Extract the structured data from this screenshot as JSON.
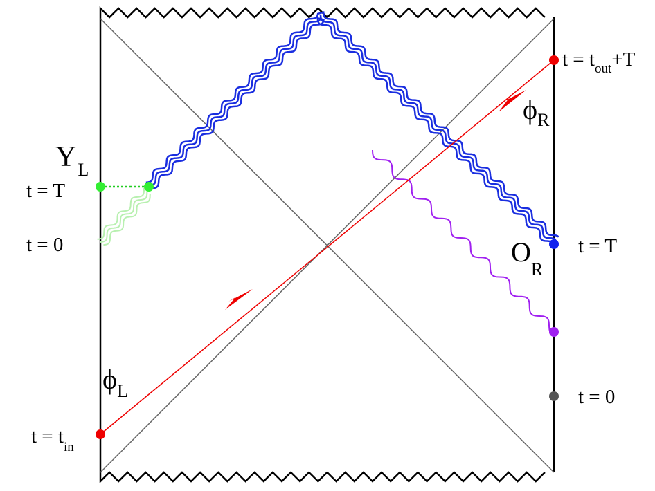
{
  "labels": {
    "y_left": {
      "main": "Y",
      "sub": "L"
    },
    "t_T_left": "t = T",
    "t_0_left": "t = 0",
    "phi_left": {
      "main": "ϕ",
      "sub": "L"
    },
    "t_in": {
      "main": "t = t",
      "sub": "in"
    },
    "t_out": {
      "main": "t = t",
      "sub": "out",
      "tail": "+T"
    },
    "phi_right": {
      "main": "ϕ",
      "sub": "R"
    },
    "o_right": {
      "main": "O",
      "sub": "R"
    },
    "t_T_right": "t = T",
    "t_0_right": "t = 0"
  }
}
